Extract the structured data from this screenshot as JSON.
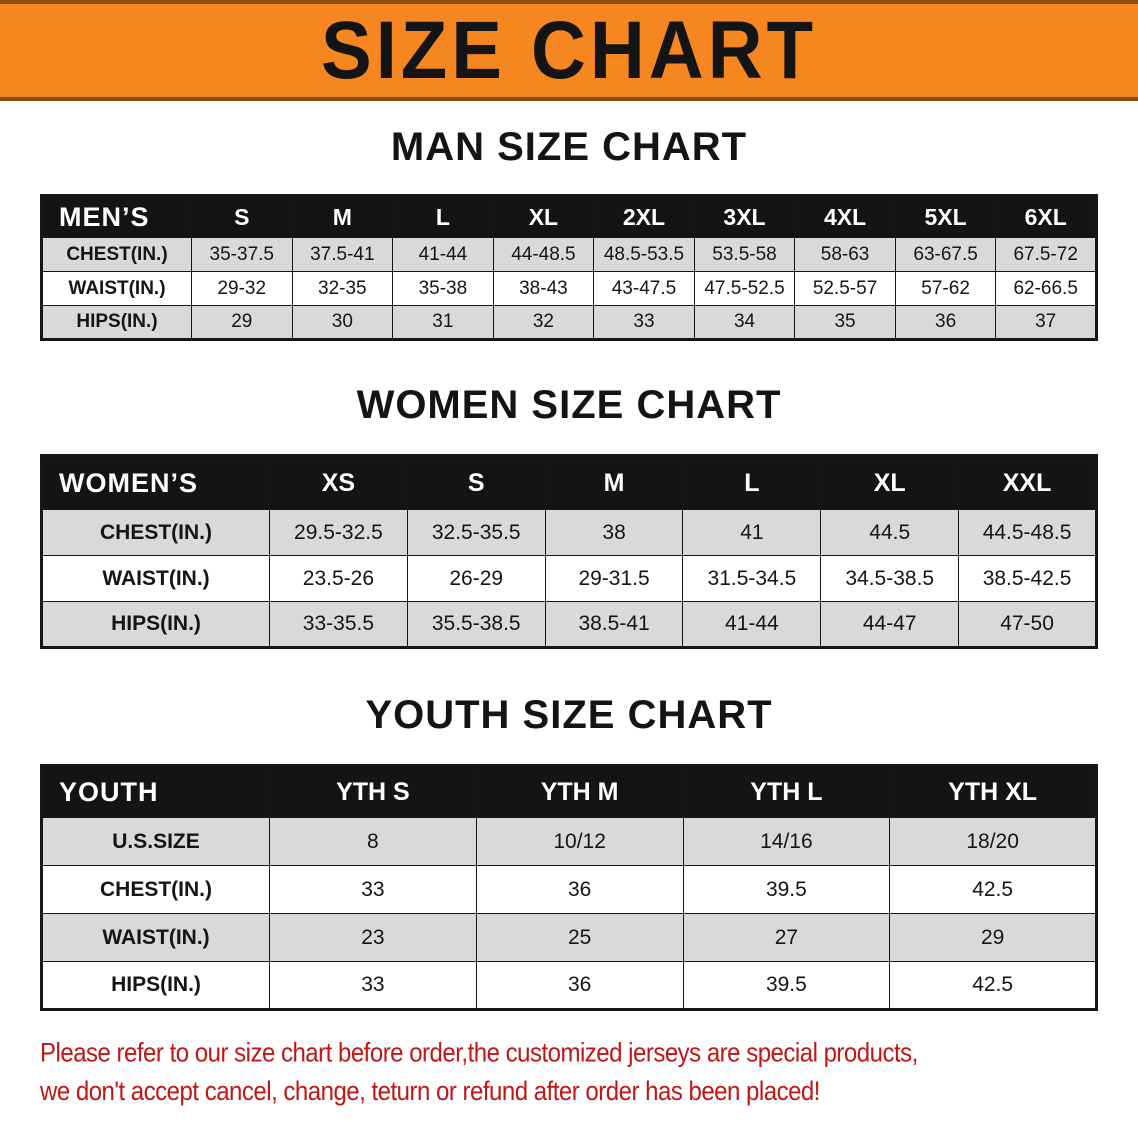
{
  "banner": {
    "title": "SIZE CHART",
    "background_color": "#f6861f",
    "title_color": "#141414"
  },
  "men": {
    "heading": "MAN SIZE CHART",
    "table": {
      "header": [
        "MEN’S",
        "S",
        "M",
        "L",
        "XL",
        "2XL",
        "3XL",
        "4XL",
        "5XL",
        "6XL"
      ],
      "rows": [
        [
          "CHEST(IN.)",
          "35-37.5",
          "37.5-41",
          "41-44",
          "44-48.5",
          "48.5-53.5",
          "53.5-58",
          "58-63",
          "63-67.5",
          "67.5-72"
        ],
        [
          "WAIST(IN.)",
          "29-32",
          "32-35",
          "35-38",
          "38-43",
          "43-47.5",
          "47.5-52.5",
          "52.5-57",
          "57-62",
          "62-66.5"
        ],
        [
          "HIPS(IN.)",
          "29",
          "30",
          "31",
          "32",
          "33",
          "34",
          "35",
          "36",
          "37"
        ]
      ]
    }
  },
  "women": {
    "heading": "WOMEN SIZE CHART",
    "table": {
      "header": [
        "WOMEN’S",
        "XS",
        "S",
        "M",
        "L",
        "XL",
        "XXL"
      ],
      "rows": [
        [
          "CHEST(IN.)",
          "29.5-32.5",
          "32.5-35.5",
          "38",
          "41",
          "44.5",
          "44.5-48.5"
        ],
        [
          "WAIST(IN.)",
          "23.5-26",
          "26-29",
          "29-31.5",
          "31.5-34.5",
          "34.5-38.5",
          "38.5-42.5"
        ],
        [
          "HIPS(IN.)",
          "33-35.5",
          "35.5-38.5",
          "38.5-41",
          "41-44",
          "44-47",
          "47-50"
        ]
      ]
    }
  },
  "youth": {
    "heading": "YOUTH SIZE CHART",
    "table": {
      "header": [
        "YOUTH",
        "YTH S",
        "YTH M",
        "YTH L",
        "YTH XL"
      ],
      "rows": [
        [
          "U.S.SIZE",
          "8",
          "10/12",
          "14/16",
          "18/20"
        ],
        [
          "CHEST(IN.)",
          "33",
          "36",
          "39.5",
          "42.5"
        ],
        [
          "WAIST(IN.)",
          "23",
          "25",
          "27",
          "29"
        ],
        [
          "HIPS(IN.)",
          "33",
          "36",
          "39.5",
          "42.5"
        ]
      ]
    }
  },
  "footnote": {
    "line1": "Please refer to our size chart before order,the customized jerseys are special products,",
    "line2": "we don't accept cancel, change, teturn or refund after order has been placed!",
    "text_color": "#c01616"
  },
  "colors": {
    "header_row_background": "#141414",
    "header_row_text": "#ffffff",
    "alternate_row_background": "#d9d9d9",
    "table_border": "#161616"
  }
}
